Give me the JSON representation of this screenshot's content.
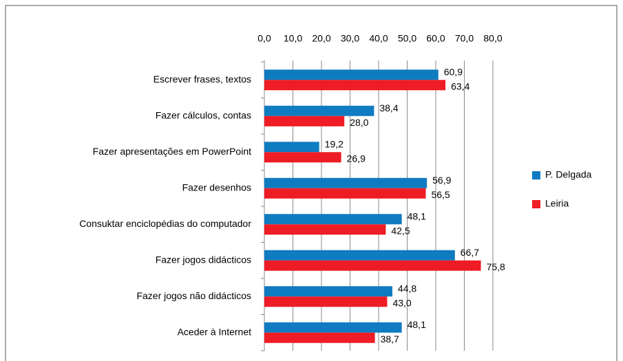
{
  "chart_data": {
    "type": "bar",
    "orientation": "horizontal",
    "categories": [
      "Escrever frases, textos",
      "Fazer cálculos, contas",
      "Fazer apresentações em PowerPoint",
      "Fazer desenhos",
      "Consuktar enciclopédias do computador",
      "Fazer jogos didácticos",
      "Fazer jogos não didácticos",
      "Aceder à Internet"
    ],
    "series": [
      {
        "name": "P. Delgada",
        "color": "#0f7bc1",
        "values": [
          60.9,
          38.4,
          19.2,
          56.9,
          48.1,
          66.7,
          44.8,
          48.1
        ],
        "value_labels": [
          "60,9",
          "38,4",
          "19,2",
          "56,9",
          "48,1",
          "66,7",
          "44,8",
          "48,1"
        ]
      },
      {
        "name": "Leiria",
        "color": "#ee1c25",
        "values": [
          63.4,
          28.0,
          26.9,
          56.5,
          42.5,
          75.8,
          43.0,
          38.7
        ],
        "value_labels": [
          "63,4",
          "28,0",
          "26,9",
          "56,5",
          "42,5",
          "75,8",
          "43,0",
          "38,7"
        ]
      }
    ],
    "xlim": [
      0,
      80
    ],
    "xticks": [
      {
        "value": 0,
        "label": "0,0"
      },
      {
        "value": 10,
        "label": "10,0"
      },
      {
        "value": 20,
        "label": "20,0"
      },
      {
        "value": 30,
        "label": "30,0"
      },
      {
        "value": 40,
        "label": "40,0"
      },
      {
        "value": 50,
        "label": "50,0"
      },
      {
        "value": 60,
        "label": "60,0"
      },
      {
        "value": 70,
        "label": "70,0"
      },
      {
        "value": 80,
        "label": "80,0"
      }
    ],
    "grid": true,
    "legend": "right"
  }
}
